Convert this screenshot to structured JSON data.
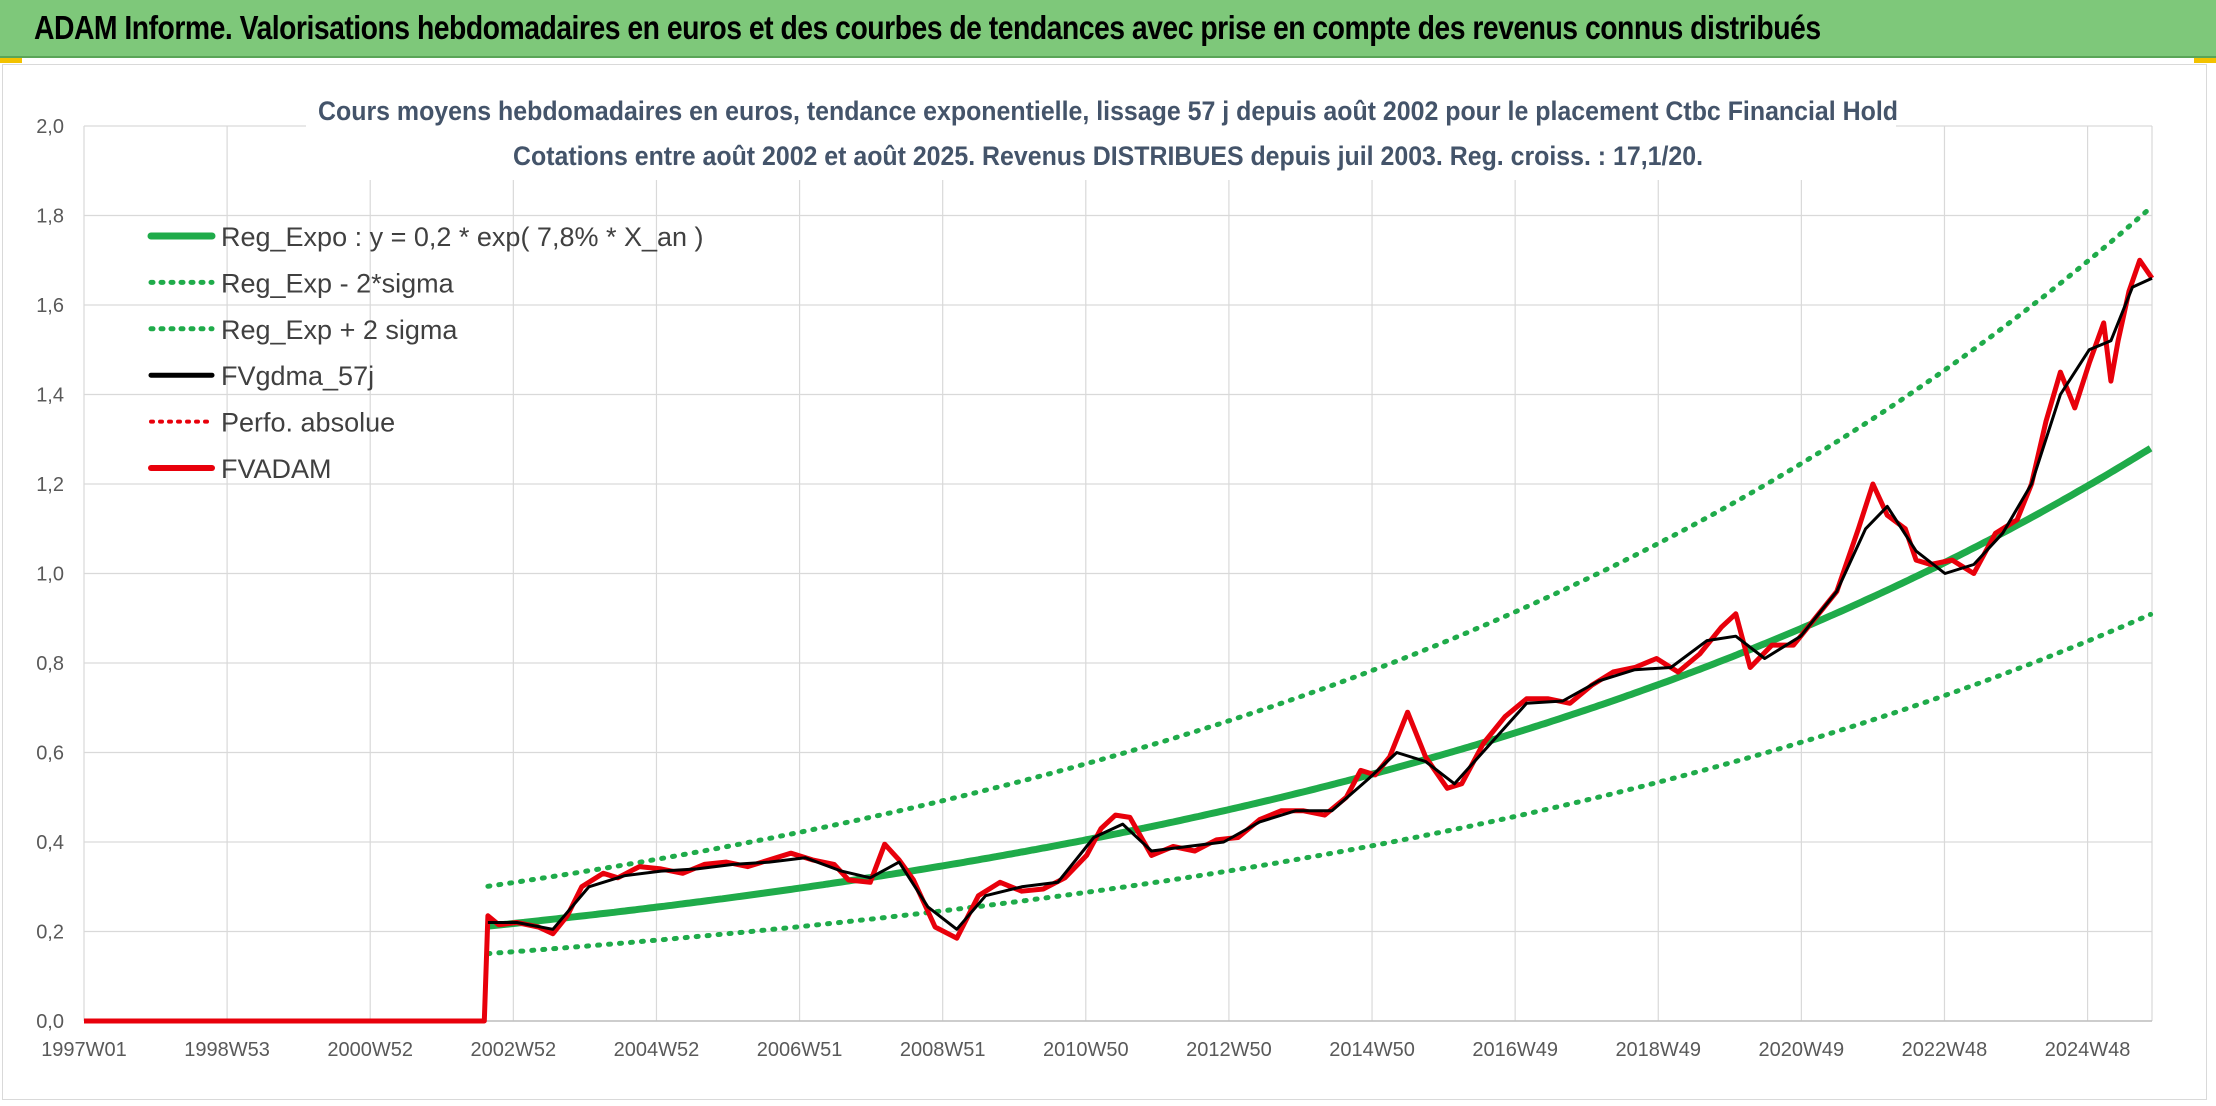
{
  "header": {
    "title": "ADAM Informe. Valorisations hebdomadaires en euros et des courbes de tendances avec prise en compte des revenus connus distribués"
  },
  "colors": {
    "banner": "#7ec87a",
    "regression": "#1fab4a",
    "band": "#1fab4a",
    "fvgdma": "#000000",
    "fvadam": "#e8000b",
    "perfo": "#e8000b"
  },
  "chart_data": {
    "type": "line",
    "title_line1": "Cours moyens hebdomadaires en euros, tendance exponentielle, lissage 57 j depuis août 2002 pour le placement Ctbc Financial Hold",
    "title_line2": "Cotations entre août 2002 et août 2025. Revenus DISTRIBUES depuis juil 2003. Reg. croiss. : 17,1/20.",
    "x_range": [
      1997.0,
      2025.67
    ],
    "ylim": [
      0,
      2.0
    ],
    "y_ticks": [
      "0,0",
      "0,2",
      "0,4",
      "0,6",
      "0,8",
      "1,0",
      "1,2",
      "1,4",
      "1,6",
      "1,8",
      "2,0"
    ],
    "x_tick_labels": [
      "1997W01",
      "1998W53",
      "2000W52",
      "2002W52",
      "2004W52",
      "2006W51",
      "2008W51",
      "2010W50",
      "2012W50",
      "2014W50",
      "2016W49",
      "2018W49",
      "2020W49",
      "2022W48",
      "2024W48"
    ],
    "grid": true,
    "legend_position": "top-left",
    "legend": [
      "Reg_Expo : y = 0,2 * exp( 7,8% *  X_an )",
      "Reg_Exp - 2*sigma",
      "Reg_Exp + 2 sigma",
      "FVgdma_57j",
      "Perfo. absolue",
      "FVADAM"
    ],
    "regression": {
      "start": 2002.6,
      "end": 2025.67,
      "y0": 0.212,
      "rate": 0.078,
      "lower_factor": 0.71,
      "upper_factor": 1.42
    },
    "series": [
      {
        "name": "FVADAM",
        "x": [
          1997.0,
          2002.55,
          2002.6,
          2002.75,
          2003.0,
          2003.3,
          2003.5,
          2003.7,
          2003.9,
          2004.2,
          2004.4,
          2004.7,
          2005.0,
          2005.3,
          2005.6,
          2005.9,
          2006.2,
          2006.5,
          2006.8,
          2007.1,
          2007.4,
          2007.6,
          2007.9,
          2008.1,
          2008.3,
          2008.5,
          2008.8,
          2009.1,
          2009.4,
          2009.7,
          2010.0,
          2010.3,
          2010.6,
          2010.9,
          2011.1,
          2011.3,
          2011.5,
          2011.8,
          2012.1,
          2012.4,
          2012.7,
          2013.0,
          2013.3,
          2013.6,
          2013.9,
          2014.2,
          2014.5,
          2014.7,
          2014.9,
          2015.1,
          2015.35,
          2015.6,
          2015.9,
          2016.1,
          2016.4,
          2016.7,
          2017.0,
          2017.3,
          2017.6,
          2017.9,
          2018.2,
          2018.5,
          2018.8,
          2019.1,
          2019.4,
          2019.7,
          2019.9,
          2020.1,
          2020.4,
          2020.7,
          2021.0,
          2021.3,
          2021.6,
          2021.8,
          2022.0,
          2022.25,
          2022.4,
          2022.6,
          2022.9,
          2023.2,
          2023.5,
          2023.8,
          2024.0,
          2024.2,
          2024.4,
          2024.6,
          2024.8,
          2025.0,
          2025.1,
          2025.2,
          2025.35,
          2025.5,
          2025.67
        ],
        "values": [
          0.0,
          0.0,
          0.235,
          0.215,
          0.22,
          0.21,
          0.195,
          0.235,
          0.3,
          0.33,
          0.32,
          0.345,
          0.34,
          0.33,
          0.35,
          0.355,
          0.345,
          0.36,
          0.375,
          0.36,
          0.35,
          0.315,
          0.31,
          0.395,
          0.36,
          0.315,
          0.21,
          0.185,
          0.28,
          0.31,
          0.29,
          0.295,
          0.32,
          0.37,
          0.43,
          0.46,
          0.455,
          0.37,
          0.39,
          0.38,
          0.405,
          0.41,
          0.45,
          0.47,
          0.47,
          0.46,
          0.5,
          0.56,
          0.55,
          0.59,
          0.69,
          0.59,
          0.52,
          0.53,
          0.62,
          0.68,
          0.72,
          0.72,
          0.71,
          0.75,
          0.78,
          0.79,
          0.81,
          0.78,
          0.82,
          0.88,
          0.91,
          0.79,
          0.84,
          0.84,
          0.9,
          0.96,
          1.1,
          1.2,
          1.13,
          1.1,
          1.03,
          1.02,
          1.03,
          1.0,
          1.09,
          1.12,
          1.2,
          1.34,
          1.45,
          1.37,
          1.47,
          1.56,
          1.43,
          1.52,
          1.63,
          1.7,
          1.66
        ]
      },
      {
        "name": "FVgdma_57j",
        "x": [
          2002.6,
          2003.0,
          2003.5,
          2004.0,
          2004.5,
          2005.0,
          2005.5,
          2006.0,
          2006.5,
          2007.0,
          2007.5,
          2007.9,
          2008.3,
          2008.7,
          2009.1,
          2009.5,
          2010.0,
          2010.5,
          2011.0,
          2011.4,
          2011.8,
          2012.3,
          2012.8,
          2013.3,
          2013.8,
          2014.3,
          2014.8,
          2015.2,
          2015.6,
          2016.0,
          2016.5,
          2017.0,
          2017.5,
          2018.0,
          2018.5,
          2019.0,
          2019.5,
          2019.9,
          2020.3,
          2020.8,
          2021.3,
          2021.7,
          2022.0,
          2022.4,
          2022.8,
          2023.2,
          2023.6,
          2024.0,
          2024.4,
          2024.8,
          2025.1,
          2025.4,
          2025.67
        ],
        "values": [
          0.22,
          0.22,
          0.205,
          0.3,
          0.325,
          0.335,
          0.34,
          0.35,
          0.355,
          0.365,
          0.335,
          0.32,
          0.355,
          0.255,
          0.205,
          0.28,
          0.3,
          0.31,
          0.41,
          0.44,
          0.38,
          0.39,
          0.4,
          0.445,
          0.47,
          0.47,
          0.54,
          0.6,
          0.58,
          0.53,
          0.62,
          0.71,
          0.715,
          0.76,
          0.785,
          0.79,
          0.85,
          0.86,
          0.81,
          0.86,
          0.96,
          1.1,
          1.15,
          1.05,
          1.0,
          1.02,
          1.09,
          1.2,
          1.4,
          1.5,
          1.52,
          1.64,
          1.66
        ]
      }
    ]
  }
}
